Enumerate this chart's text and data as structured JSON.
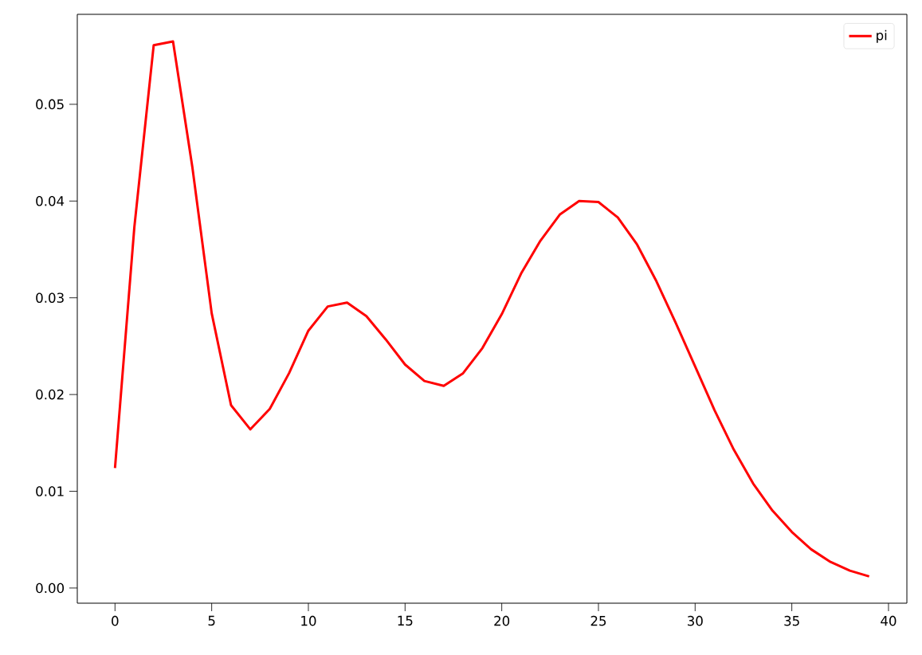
{
  "chart_data": {
    "type": "line",
    "x": [
      0,
      1,
      2,
      3,
      4,
      5,
      6,
      7,
      8,
      9,
      10,
      11,
      12,
      13,
      14,
      15,
      16,
      17,
      18,
      19,
      20,
      21,
      22,
      23,
      24,
      25,
      26,
      27,
      28,
      29,
      30,
      31,
      32,
      33,
      34,
      35,
      36,
      37,
      38,
      39
    ],
    "series": [
      {
        "name": "pi",
        "color": "#ff0000",
        "values": [
          0.0124,
          0.0373,
          0.0561,
          0.0565,
          0.0435,
          0.0284,
          0.0189,
          0.0164,
          0.0185,
          0.0222,
          0.0266,
          0.0291,
          0.0295,
          0.0281,
          0.0257,
          0.0231,
          0.0214,
          0.0209,
          0.0222,
          0.0248,
          0.0283,
          0.0325,
          0.0359,
          0.0386,
          0.04,
          0.0399,
          0.0383,
          0.0355,
          0.0317,
          0.0274,
          0.0229,
          0.0184,
          0.0143,
          0.0108,
          0.008,
          0.0058,
          0.004,
          0.0027,
          0.0018,
          0.0012
        ]
      }
    ],
    "xlim": [
      -1.95,
      40.95
    ],
    "ylim": [
      -0.00157,
      0.0593
    ],
    "xticks": [
      0,
      5,
      10,
      15,
      20,
      25,
      30,
      35,
      40
    ],
    "yticks": [
      {
        "value": 0,
        "label": "0.00"
      },
      {
        "value": 0.01,
        "label": "0.01"
      },
      {
        "value": 0.02,
        "label": "0.02"
      },
      {
        "value": 0.03,
        "label": "0.03"
      },
      {
        "value": 0.04,
        "label": "0.04"
      },
      {
        "value": 0.05,
        "label": "0.05"
      }
    ],
    "legend": "top right"
  }
}
